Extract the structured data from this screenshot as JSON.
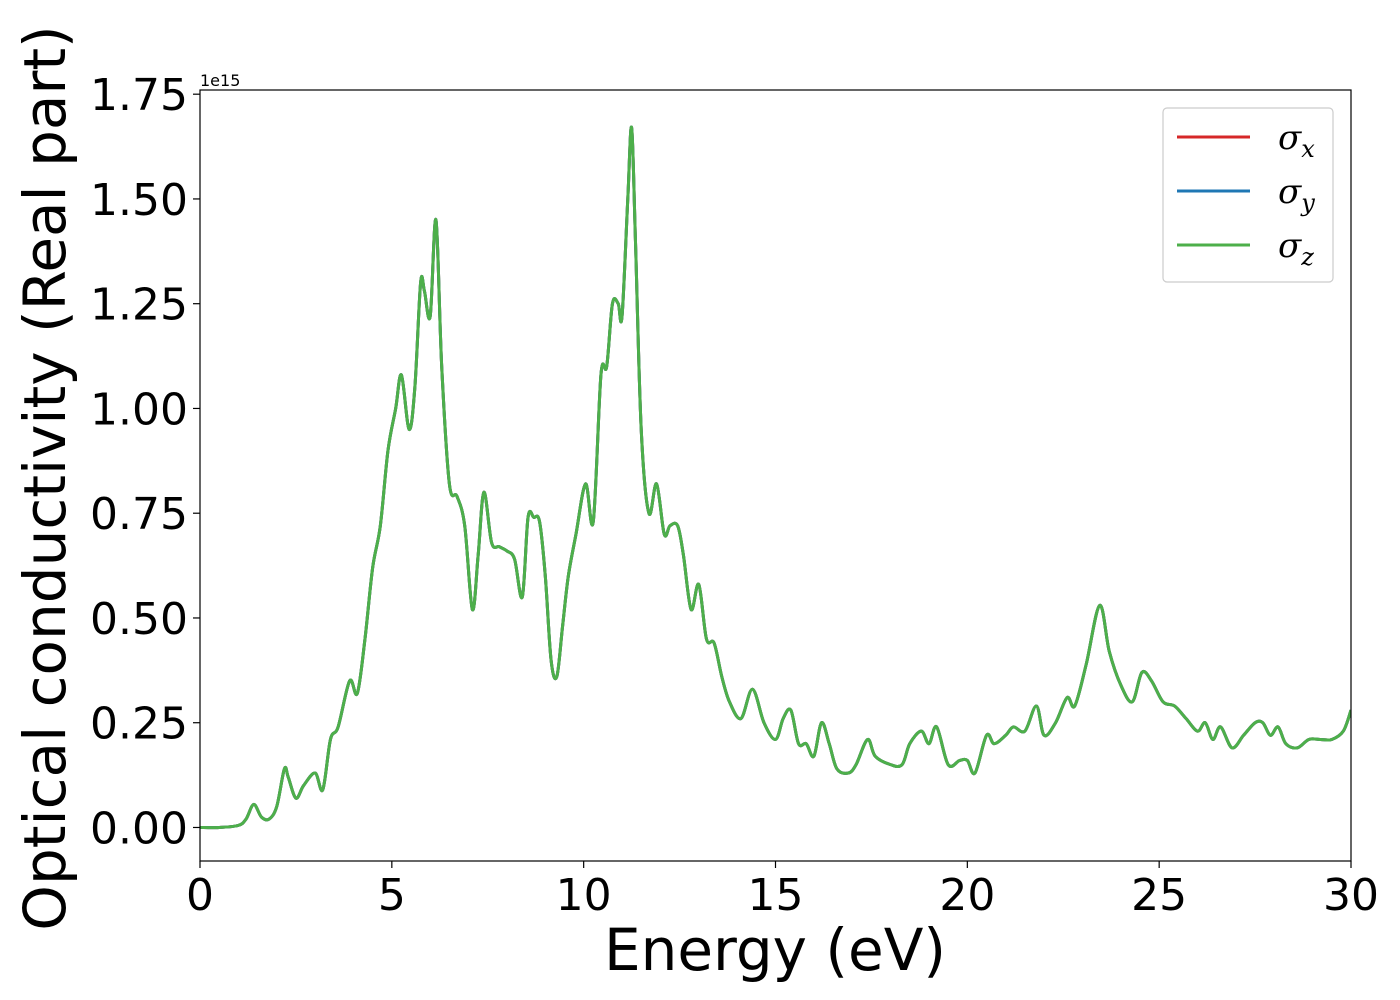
{
  "chart_data": {
    "type": "line",
    "xlabel": "Energy (eV)",
    "ylabel": "Optical conductivity (Real part)",
    "y_offset_label": "1e15",
    "xlim": [
      0,
      30
    ],
    "ylim": [
      -0.08,
      1.76
    ],
    "xticks": [
      0,
      5,
      10,
      15,
      20,
      25,
      30
    ],
    "xtick_labels": [
      "0",
      "5",
      "10",
      "15",
      "20",
      "25",
      "30"
    ],
    "yticks": [
      0.0,
      0.25,
      0.5,
      0.75,
      1.0,
      1.25,
      1.5,
      1.75
    ],
    "ytick_labels": [
      "0.00",
      "0.25",
      "0.50",
      "0.75",
      "1.00",
      "1.25",
      "1.50",
      "1.75"
    ],
    "grid": false,
    "legend_position": "top-right",
    "x": [
      0,
      0.5,
      1.0,
      1.2,
      1.4,
      1.6,
      1.8,
      2.0,
      2.2,
      2.3,
      2.5,
      2.7,
      3.0,
      3.2,
      3.4,
      3.6,
      3.9,
      4.1,
      4.3,
      4.5,
      4.7,
      4.9,
      5.1,
      5.25,
      5.45,
      5.6,
      5.75,
      5.85,
      6.0,
      6.15,
      6.3,
      6.5,
      6.7,
      6.9,
      7.1,
      7.25,
      7.4,
      7.6,
      7.8,
      8.0,
      8.2,
      8.4,
      8.55,
      8.7,
      8.85,
      9.0,
      9.15,
      9.3,
      9.45,
      9.6,
      9.8,
      10.05,
      10.25,
      10.45,
      10.6,
      10.75,
      10.9,
      11.0,
      11.15,
      11.25,
      11.35,
      11.5,
      11.7,
      11.9,
      12.1,
      12.25,
      12.45,
      12.6,
      12.8,
      13.0,
      13.2,
      13.4,
      13.6,
      13.8,
      14.1,
      14.4,
      14.7,
      15.0,
      15.2,
      15.4,
      15.6,
      15.8,
      16.0,
      16.2,
      16.4,
      16.6,
      16.9,
      17.1,
      17.4,
      17.6,
      18.0,
      18.3,
      18.5,
      18.8,
      19.0,
      19.2,
      19.5,
      19.8,
      20.0,
      20.2,
      20.5,
      20.7,
      21.0,
      21.2,
      21.5,
      21.8,
      22.0,
      22.3,
      22.6,
      22.8,
      23.1,
      23.45,
      23.7,
      24.0,
      24.3,
      24.55,
      24.8,
      25.1,
      25.4,
      25.7,
      26.0,
      26.2,
      26.4,
      26.6,
      26.9,
      27.2,
      27.5,
      27.7,
      27.9,
      28.1,
      28.3,
      28.6,
      28.9,
      29.2,
      29.5,
      29.8,
      30.0
    ],
    "series": [
      {
        "name": "σx",
        "color": "#d62728",
        "values": [
          0.0,
          0.0,
          0.005,
          0.02,
          0.055,
          0.025,
          0.02,
          0.05,
          0.14,
          0.12,
          0.07,
          0.1,
          0.13,
          0.09,
          0.21,
          0.24,
          0.35,
          0.32,
          0.45,
          0.62,
          0.72,
          0.9,
          1.0,
          1.08,
          0.95,
          1.05,
          1.3,
          1.28,
          1.22,
          1.45,
          1.1,
          0.82,
          0.79,
          0.72,
          0.52,
          0.65,
          0.8,
          0.68,
          0.67,
          0.66,
          0.64,
          0.55,
          0.74,
          0.74,
          0.73,
          0.6,
          0.4,
          0.36,
          0.48,
          0.6,
          0.7,
          0.82,
          0.73,
          1.08,
          1.1,
          1.25,
          1.25,
          1.22,
          1.5,
          1.67,
          1.4,
          0.95,
          0.75,
          0.82,
          0.7,
          0.72,
          0.72,
          0.65,
          0.52,
          0.58,
          0.45,
          0.44,
          0.36,
          0.3,
          0.26,
          0.33,
          0.25,
          0.21,
          0.26,
          0.28,
          0.2,
          0.2,
          0.17,
          0.25,
          0.2,
          0.14,
          0.13,
          0.15,
          0.21,
          0.17,
          0.15,
          0.15,
          0.2,
          0.23,
          0.2,
          0.24,
          0.15,
          0.16,
          0.16,
          0.13,
          0.22,
          0.2,
          0.22,
          0.24,
          0.23,
          0.29,
          0.22,
          0.25,
          0.31,
          0.29,
          0.39,
          0.53,
          0.42,
          0.34,
          0.3,
          0.37,
          0.35,
          0.3,
          0.29,
          0.26,
          0.23,
          0.25,
          0.21,
          0.24,
          0.19,
          0.22,
          0.25,
          0.25,
          0.22,
          0.24,
          0.2,
          0.19,
          0.21,
          0.21,
          0.21,
          0.23,
          0.28
        ]
      },
      {
        "name": "σy",
        "color": "#1f77b4",
        "values": [
          0.0,
          0.0,
          0.005,
          0.02,
          0.055,
          0.025,
          0.02,
          0.05,
          0.14,
          0.12,
          0.07,
          0.1,
          0.13,
          0.09,
          0.21,
          0.24,
          0.35,
          0.32,
          0.45,
          0.62,
          0.72,
          0.9,
          1.0,
          1.08,
          0.95,
          1.05,
          1.3,
          1.28,
          1.22,
          1.45,
          1.1,
          0.82,
          0.79,
          0.72,
          0.52,
          0.65,
          0.8,
          0.68,
          0.67,
          0.66,
          0.64,
          0.55,
          0.74,
          0.74,
          0.73,
          0.6,
          0.4,
          0.36,
          0.48,
          0.6,
          0.7,
          0.82,
          0.73,
          1.08,
          1.1,
          1.25,
          1.25,
          1.22,
          1.5,
          1.67,
          1.4,
          0.95,
          0.75,
          0.82,
          0.7,
          0.72,
          0.72,
          0.65,
          0.52,
          0.58,
          0.45,
          0.44,
          0.36,
          0.3,
          0.26,
          0.33,
          0.25,
          0.21,
          0.26,
          0.28,
          0.2,
          0.2,
          0.17,
          0.25,
          0.2,
          0.14,
          0.13,
          0.15,
          0.21,
          0.17,
          0.15,
          0.15,
          0.2,
          0.23,
          0.2,
          0.24,
          0.15,
          0.16,
          0.16,
          0.13,
          0.22,
          0.2,
          0.22,
          0.24,
          0.23,
          0.29,
          0.22,
          0.25,
          0.31,
          0.29,
          0.39,
          0.53,
          0.42,
          0.34,
          0.3,
          0.37,
          0.35,
          0.3,
          0.29,
          0.26,
          0.23,
          0.25,
          0.21,
          0.24,
          0.19,
          0.22,
          0.25,
          0.25,
          0.22,
          0.24,
          0.2,
          0.19,
          0.21,
          0.21,
          0.21,
          0.23,
          0.28
        ]
      },
      {
        "name": "σz",
        "color": "#4daf4a",
        "values": [
          0.0,
          0.0,
          0.005,
          0.02,
          0.055,
          0.025,
          0.02,
          0.05,
          0.14,
          0.12,
          0.07,
          0.1,
          0.13,
          0.09,
          0.21,
          0.24,
          0.35,
          0.32,
          0.45,
          0.62,
          0.72,
          0.9,
          1.0,
          1.08,
          0.95,
          1.05,
          1.3,
          1.28,
          1.22,
          1.45,
          1.1,
          0.82,
          0.79,
          0.72,
          0.52,
          0.65,
          0.8,
          0.68,
          0.67,
          0.66,
          0.64,
          0.55,
          0.74,
          0.74,
          0.73,
          0.6,
          0.4,
          0.36,
          0.48,
          0.6,
          0.7,
          0.82,
          0.73,
          1.08,
          1.1,
          1.25,
          1.25,
          1.22,
          1.5,
          1.67,
          1.4,
          0.95,
          0.75,
          0.82,
          0.7,
          0.72,
          0.72,
          0.65,
          0.52,
          0.58,
          0.45,
          0.44,
          0.36,
          0.3,
          0.26,
          0.33,
          0.25,
          0.21,
          0.26,
          0.28,
          0.2,
          0.2,
          0.17,
          0.25,
          0.2,
          0.14,
          0.13,
          0.15,
          0.21,
          0.17,
          0.15,
          0.15,
          0.2,
          0.23,
          0.2,
          0.24,
          0.15,
          0.16,
          0.16,
          0.13,
          0.22,
          0.2,
          0.22,
          0.24,
          0.23,
          0.29,
          0.22,
          0.25,
          0.31,
          0.29,
          0.39,
          0.53,
          0.42,
          0.34,
          0.3,
          0.37,
          0.35,
          0.3,
          0.29,
          0.26,
          0.23,
          0.25,
          0.21,
          0.24,
          0.19,
          0.22,
          0.25,
          0.25,
          0.22,
          0.24,
          0.2,
          0.19,
          0.21,
          0.21,
          0.21,
          0.23,
          0.28
        ]
      }
    ]
  },
  "legend": {
    "items": [
      {
        "symbol": "σ",
        "subscript": "x",
        "color": "#d62728"
      },
      {
        "symbol": "σ",
        "subscript": "y",
        "color": "#1f77b4"
      },
      {
        "symbol": "σ",
        "subscript": "z",
        "color": "#4daf4a"
      }
    ]
  }
}
